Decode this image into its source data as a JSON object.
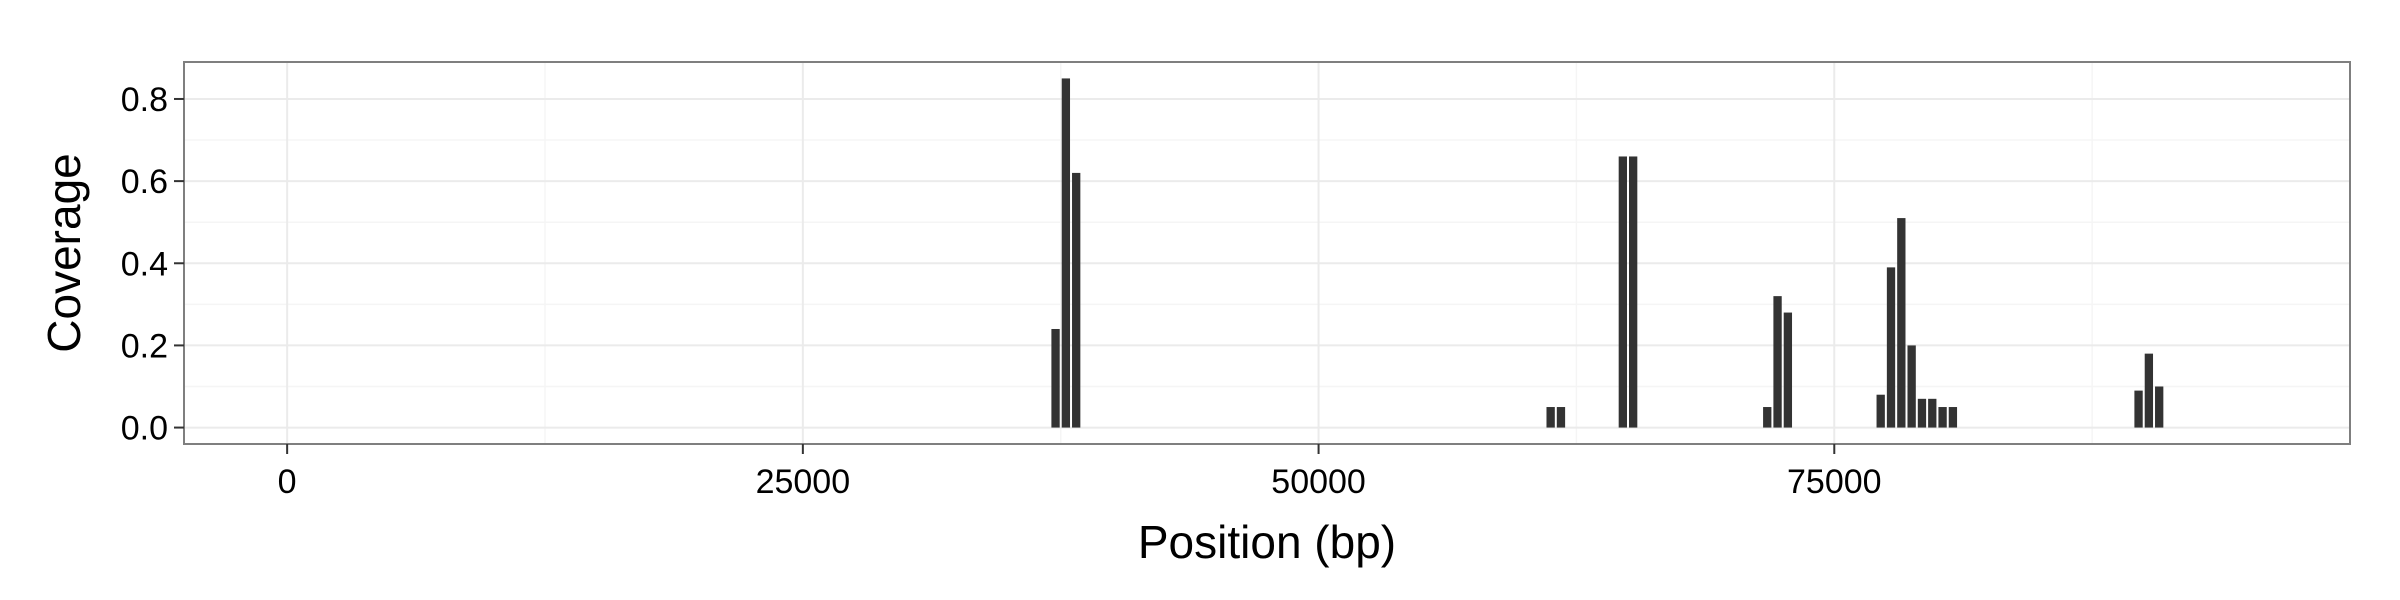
{
  "chart_data": {
    "type": "bar",
    "xlabel": "Position (bp)",
    "ylabel": "Coverage",
    "xlim": [
      -5000,
      100000
    ],
    "ylim": [
      -0.04,
      0.89
    ],
    "x_ticks": [
      0,
      25000,
      50000,
      75000
    ],
    "x_tick_labels": [
      "0",
      "25000",
      "50000",
      "75000"
    ],
    "y_ticks": [
      0.0,
      0.2,
      0.4,
      0.6,
      0.8
    ],
    "y_tick_labels": [
      "0.0",
      "0.2",
      "0.4",
      "0.6",
      "0.8"
    ],
    "bin_width": 500,
    "grid": true,
    "bar_color": "#333333",
    "panel_border_color": "#7f7f7f",
    "grid_color": "#ebebeb",
    "bars": [
      {
        "x": 37250,
        "y": 0.24
      },
      {
        "x": 37750,
        "y": 0.85
      },
      {
        "x": 38250,
        "y": 0.62
      },
      {
        "x": 61250,
        "y": 0.05
      },
      {
        "x": 61750,
        "y": 0.05
      },
      {
        "x": 64750,
        "y": 0.66
      },
      {
        "x": 65250,
        "y": 0.66
      },
      {
        "x": 71750,
        "y": 0.05
      },
      {
        "x": 72250,
        "y": 0.32
      },
      {
        "x": 72750,
        "y": 0.28
      },
      {
        "x": 77250,
        "y": 0.08
      },
      {
        "x": 77750,
        "y": 0.39
      },
      {
        "x": 78250,
        "y": 0.51
      },
      {
        "x": 78750,
        "y": 0.2
      },
      {
        "x": 79250,
        "y": 0.07
      },
      {
        "x": 79750,
        "y": 0.07
      },
      {
        "x": 80250,
        "y": 0.05
      },
      {
        "x": 80750,
        "y": 0.05
      },
      {
        "x": 89750,
        "y": 0.09
      },
      {
        "x": 90250,
        "y": 0.18
      },
      {
        "x": 90750,
        "y": 0.1
      }
    ]
  }
}
